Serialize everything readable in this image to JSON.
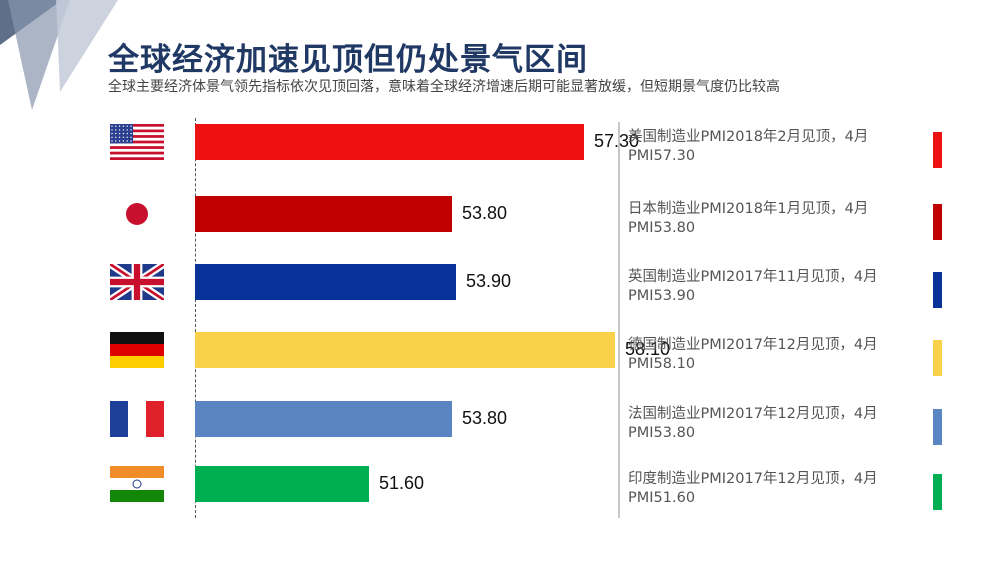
{
  "header": {
    "title": "全球经济加速见顶但仍处景气区间",
    "subtitle": "全球主要经济体景气领先指标依次见顶回落，意味着全球经济增速后期可能显著放缓，但短期景气度仍比较高"
  },
  "chart_data": {
    "type": "bar",
    "orientation": "horizontal",
    "categories": [
      "美国",
      "日本",
      "英国",
      "德国",
      "法国",
      "印度"
    ],
    "values": [
      57.3,
      53.8,
      53.9,
      58.1,
      53.8,
      51.6
    ],
    "value_labels": [
      "57.30",
      "53.80",
      "53.90",
      "58.10",
      "53.80",
      "51.60"
    ],
    "colors": [
      "#ee1111",
      "#c00000",
      "#0a3399",
      "#f9d14a",
      "#5b84c2",
      "#00b050"
    ],
    "flags": [
      "us-flag",
      "japan-flag",
      "uk-flag",
      "germany-flag",
      "france-flag",
      "india-flag"
    ],
    "xlim": [
      47,
      58.5
    ],
    "grid": false,
    "legend": "none"
  },
  "notes": [
    {
      "line1": "美国制造业PMI2018年2月见顶，4月",
      "line2": "PMI57.30"
    },
    {
      "line1": "日本制造业PMI2018年1月见顶，4月",
      "line2": "PMI53.80"
    },
    {
      "line1": "英国制造业PMI2017年11月见顶，4月",
      "line2": "PMI53.90"
    },
    {
      "line1": "德国制造业PMI2017年12月见顶，4月",
      "line2": "PMI58.10"
    },
    {
      "line1": "法国制造业PMI2017年12月见顶，4月",
      "line2": "PMI53.80"
    },
    {
      "line1": "印度制造业PMI2017年12月见顶，4月",
      "line2": "PMI51.60"
    }
  ]
}
